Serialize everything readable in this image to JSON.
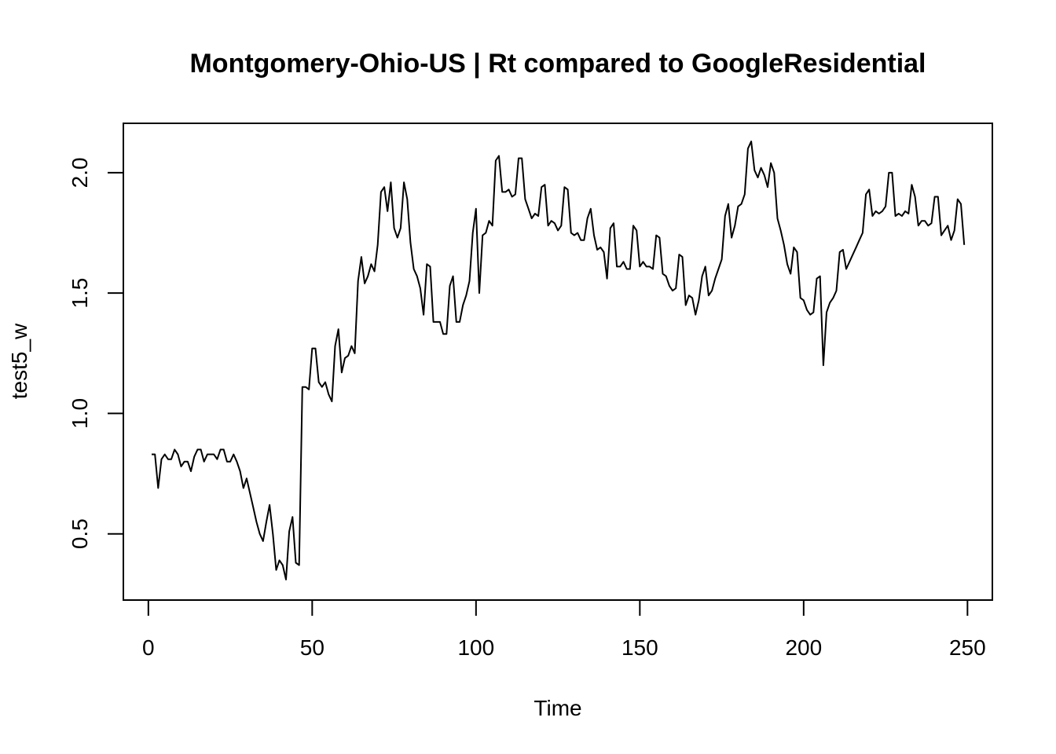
{
  "chart_data": {
    "type": "line",
    "title": "Montgomery-Ohio-US | Rt compared to GoogleResidential",
    "xlabel": "Time",
    "ylabel": "test5_w",
    "xlim": [
      1,
      248
    ],
    "ylim": [
      0.3,
      2.13
    ],
    "x_ticks": [
      0,
      50,
      100,
      150,
      200,
      250
    ],
    "y_ticks": [
      0.5,
      1.0,
      1.5,
      2.0
    ],
    "x_tick_labels": [
      "0",
      "50",
      "100",
      "150",
      "200",
      "250"
    ],
    "y_tick_labels": [
      "0.5",
      "1.0",
      "1.5",
      "2.0"
    ],
    "grid": false,
    "line_color": "#000000",
    "series": [
      {
        "x_start": 1,
        "values": [
          0.83,
          0.83,
          0.69,
          0.81,
          0.83,
          0.81,
          0.81,
          0.85,
          0.83,
          0.78,
          0.8,
          0.8,
          0.76,
          0.82,
          0.85,
          0.85,
          0.8,
          0.83,
          0.83,
          0.83,
          0.81,
          0.85,
          0.85,
          0.8,
          0.8,
          0.83,
          0.8,
          0.76,
          0.69,
          0.73,
          0.67,
          0.61,
          0.55,
          0.5,
          0.47,
          0.55,
          0.62,
          0.5,
          0.35,
          0.39,
          0.37,
          0.31,
          0.51,
          0.57,
          0.38,
          0.37,
          1.11,
          1.11,
          1.1,
          1.27,
          1.27,
          1.13,
          1.11,
          1.13,
          1.08,
          1.05,
          1.28,
          1.35,
          1.17,
          1.23,
          1.24,
          1.28,
          1.25,
          1.55,
          1.65,
          1.54,
          1.57,
          1.62,
          1.59,
          1.7,
          1.92,
          1.94,
          1.84,
          1.96,
          1.77,
          1.73,
          1.77,
          1.96,
          1.89,
          1.71,
          1.6,
          1.57,
          1.52,
          1.41,
          1.62,
          1.61,
          1.38,
          1.38,
          1.38,
          1.33,
          1.33,
          1.53,
          1.57,
          1.38,
          1.38,
          1.45,
          1.49,
          1.55,
          1.75,
          1.85,
          1.5,
          1.74,
          1.75,
          1.8,
          1.78,
          2.05,
          2.07,
          1.92,
          1.92,
          1.93,
          1.9,
          1.91,
          2.06,
          2.06,
          1.89,
          1.85,
          1.81,
          1.83,
          1.82,
          1.94,
          1.95,
          1.78,
          1.8,
          1.79,
          1.76,
          1.78,
          1.94,
          1.93,
          1.75,
          1.74,
          1.75,
          1.72,
          1.72,
          1.81,
          1.85,
          1.74,
          1.68,
          1.69,
          1.67,
          1.56,
          1.77,
          1.79,
          1.61,
          1.61,
          1.63,
          1.6,
          1.6,
          1.78,
          1.76,
          1.61,
          1.63,
          1.61,
          1.61,
          1.6,
          1.74,
          1.73,
          1.58,
          1.57,
          1.53,
          1.51,
          1.52,
          1.66,
          1.65,
          1.45,
          1.49,
          1.48,
          1.41,
          1.47,
          1.57,
          1.61,
          1.49,
          1.51,
          1.56,
          1.6,
          1.64,
          1.82,
          1.87,
          1.73,
          1.78,
          1.86,
          1.87,
          1.91,
          2.1,
          2.13,
          2.01,
          1.98,
          2.02,
          1.99,
          1.94,
          2.04,
          2.0,
          1.81,
          1.76,
          1.7,
          1.62,
          1.58,
          1.69,
          1.67,
          1.48,
          1.47,
          1.43,
          1.41,
          1.42,
          1.56,
          1.57,
          1.2,
          1.42,
          1.46,
          1.48,
          1.51,
          1.67,
          1.68,
          1.6,
          1.63,
          1.66,
          1.69,
          1.72,
          1.75,
          1.91,
          1.93,
          1.82,
          1.84,
          1.83,
          1.84,
          1.86,
          2.0,
          2.0,
          1.82,
          1.83,
          1.82,
          1.84,
          1.83,
          1.95,
          1.9,
          1.78,
          1.8,
          1.8,
          1.78,
          1.79,
          1.9,
          1.9,
          1.74,
          1.76,
          1.78,
          1.72,
          1.76,
          1.89,
          1.87,
          1.7
        ]
      }
    ]
  }
}
